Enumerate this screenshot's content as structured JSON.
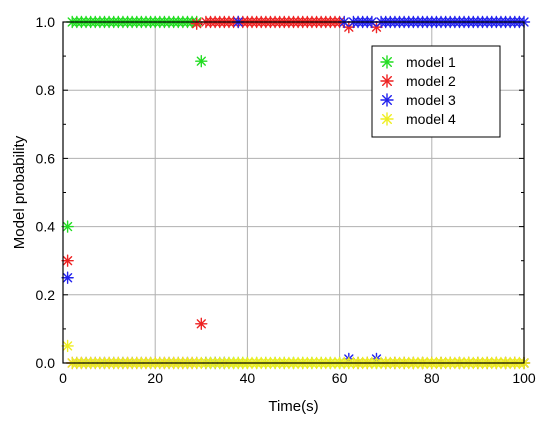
{
  "chart_data": {
    "type": "scatter",
    "title": "",
    "xlabel": "Time(s)",
    "ylabel": "Model probability",
    "xlim": [
      0,
      100
    ],
    "ylim": [
      0,
      1.0
    ],
    "xticks": [
      0,
      20,
      40,
      60,
      80,
      100
    ],
    "yticks": [
      0.0,
      0.2,
      0.4,
      0.6,
      0.8,
      1.0
    ],
    "xtick_labels": [
      "0",
      "20",
      "40",
      "60",
      "80",
      "100"
    ],
    "ytick_labels": [
      "0.0",
      "0.2",
      "0.4",
      "0.6",
      "0.8",
      "1.0"
    ],
    "grid": true,
    "legend_position": "top-right",
    "marker": "asterisk",
    "series": [
      {
        "name": "model 1",
        "color": "#22dd22",
        "points": [
          [
            1,
            0.4
          ],
          [
            2,
            1.0
          ],
          [
            3,
            1.0
          ],
          [
            4,
            1.0
          ],
          [
            5,
            1.0
          ],
          [
            6,
            1.0
          ],
          [
            7,
            1.0
          ],
          [
            8,
            1.0
          ],
          [
            9,
            1.0
          ],
          [
            10,
            1.0
          ],
          [
            11,
            1.0
          ],
          [
            12,
            1.0
          ],
          [
            13,
            1.0
          ],
          [
            14,
            1.0
          ],
          [
            15,
            1.0
          ],
          [
            16,
            1.0
          ],
          [
            17,
            1.0
          ],
          [
            18,
            1.0
          ],
          [
            19,
            1.0
          ],
          [
            20,
            1.0
          ],
          [
            21,
            1.0
          ],
          [
            22,
            1.0
          ],
          [
            23,
            1.0
          ],
          [
            24,
            1.0
          ],
          [
            25,
            1.0
          ],
          [
            26,
            1.0
          ],
          [
            27,
            1.0
          ],
          [
            28,
            1.0
          ],
          [
            29,
            1.0
          ],
          [
            30,
            0.885
          ],
          [
            31,
            0.0
          ],
          [
            32,
            0.0
          ],
          [
            33,
            0.0
          ],
          [
            34,
            0.0
          ],
          [
            35,
            0.0
          ],
          [
            36,
            0.0
          ],
          [
            37,
            0.0
          ],
          [
            38,
            0.0
          ],
          [
            39,
            0.0
          ],
          [
            40,
            0.0
          ],
          [
            42,
            0.0
          ],
          [
            44,
            0.0
          ],
          [
            46,
            0.0
          ],
          [
            48,
            0.0
          ],
          [
            50,
            0.0
          ],
          [
            52,
            0.0
          ],
          [
            54,
            0.0
          ],
          [
            56,
            0.0
          ],
          [
            58,
            0.0
          ],
          [
            60,
            0.0
          ],
          [
            62,
            0.0
          ],
          [
            64,
            0.0
          ],
          [
            66,
            0.0
          ],
          [
            68,
            0.0
          ],
          [
            70,
            0.0
          ],
          [
            72,
            0.0
          ],
          [
            74,
            0.0
          ],
          [
            76,
            0.0
          ],
          [
            78,
            0.0
          ],
          [
            80,
            0.0
          ],
          [
            82,
            0.0
          ],
          [
            84,
            0.0
          ],
          [
            86,
            0.0
          ],
          [
            88,
            0.0
          ],
          [
            90,
            0.0
          ],
          [
            92,
            0.0
          ],
          [
            94,
            0.0
          ],
          [
            96,
            0.0
          ],
          [
            98,
            0.0
          ],
          [
            100,
            0.0
          ]
        ]
      },
      {
        "name": "model 2",
        "color": "#ee2222",
        "points": [
          [
            1,
            0.3
          ],
          [
            2,
            0.0
          ],
          [
            4,
            0.0
          ],
          [
            6,
            0.0
          ],
          [
            8,
            0.0
          ],
          [
            10,
            0.0
          ],
          [
            12,
            0.0
          ],
          [
            14,
            0.0
          ],
          [
            16,
            0.0
          ],
          [
            18,
            0.0
          ],
          [
            20,
            0.0
          ],
          [
            22,
            0.0
          ],
          [
            24,
            0.0
          ],
          [
            26,
            0.0
          ],
          [
            28,
            0.0
          ],
          [
            29,
            0.995
          ],
          [
            30,
            0.115
          ],
          [
            31,
            1.0
          ],
          [
            32,
            1.0
          ],
          [
            33,
            1.0
          ],
          [
            34,
            1.0
          ],
          [
            35,
            1.0
          ],
          [
            36,
            1.0
          ],
          [
            37,
            1.0
          ],
          [
            38,
            1.0
          ],
          [
            39,
            1.0
          ],
          [
            40,
            1.0
          ],
          [
            41,
            1.0
          ],
          [
            42,
            1.0
          ],
          [
            43,
            1.0
          ],
          [
            44,
            1.0
          ],
          [
            45,
            1.0
          ],
          [
            46,
            1.0
          ],
          [
            47,
            1.0
          ],
          [
            48,
            1.0
          ],
          [
            49,
            1.0
          ],
          [
            50,
            1.0
          ],
          [
            51,
            1.0
          ],
          [
            52,
            1.0
          ],
          [
            53,
            1.0
          ],
          [
            54,
            1.0
          ],
          [
            55,
            1.0
          ],
          [
            56,
            1.0
          ],
          [
            57,
            1.0
          ],
          [
            58,
            1.0
          ],
          [
            59,
            1.0
          ],
          [
            60,
            1.0
          ],
          [
            62,
            0.985
          ],
          [
            68,
            0.985
          ],
          [
            64,
            0.0
          ],
          [
            66,
            0.0
          ],
          [
            70,
            0.0
          ],
          [
            72,
            0.0
          ],
          [
            74,
            0.0
          ],
          [
            76,
            0.0
          ],
          [
            78,
            0.0
          ],
          [
            80,
            0.0
          ],
          [
            82,
            0.0
          ],
          [
            84,
            0.0
          ],
          [
            86,
            0.0
          ],
          [
            88,
            0.0
          ],
          [
            90,
            0.0
          ],
          [
            92,
            0.0
          ],
          [
            94,
            0.0
          ],
          [
            96,
            0.0
          ],
          [
            98,
            0.0
          ],
          [
            100,
            0.0
          ]
        ]
      },
      {
        "name": "model 3",
        "color": "#2222ee",
        "points": [
          [
            1,
            0.25
          ],
          [
            3,
            0.0
          ],
          [
            5,
            0.0
          ],
          [
            7,
            0.0
          ],
          [
            9,
            0.0
          ],
          [
            11,
            0.0
          ],
          [
            13,
            0.0
          ],
          [
            15,
            0.0
          ],
          [
            17,
            0.0
          ],
          [
            19,
            0.0
          ],
          [
            21,
            0.0
          ],
          [
            23,
            0.0
          ],
          [
            25,
            0.0
          ],
          [
            27,
            0.0
          ],
          [
            29,
            0.0
          ],
          [
            31,
            0.0
          ],
          [
            33,
            0.0
          ],
          [
            35,
            0.0
          ],
          [
            38,
            1.0
          ],
          [
            61,
            1.0
          ],
          [
            62,
            0.012
          ],
          [
            63,
            1.0
          ],
          [
            64,
            1.0
          ],
          [
            65,
            1.0
          ],
          [
            66,
            1.0
          ],
          [
            67,
            1.0
          ],
          [
            68,
            0.012
          ],
          [
            69,
            1.0
          ],
          [
            70,
            1.0
          ],
          [
            71,
            1.0
          ],
          [
            72,
            1.0
          ],
          [
            73,
            1.0
          ],
          [
            74,
            1.0
          ],
          [
            75,
            1.0
          ],
          [
            76,
            1.0
          ],
          [
            77,
            1.0
          ],
          [
            78,
            1.0
          ],
          [
            79,
            1.0
          ],
          [
            80,
            1.0
          ],
          [
            81,
            1.0
          ],
          [
            82,
            1.0
          ],
          [
            83,
            1.0
          ],
          [
            84,
            1.0
          ],
          [
            85,
            1.0
          ],
          [
            86,
            1.0
          ],
          [
            87,
            1.0
          ],
          [
            88,
            1.0
          ],
          [
            89,
            1.0
          ],
          [
            90,
            1.0
          ],
          [
            91,
            1.0
          ],
          [
            92,
            1.0
          ],
          [
            93,
            1.0
          ],
          [
            94,
            1.0
          ],
          [
            95,
            1.0
          ],
          [
            96,
            1.0
          ],
          [
            97,
            1.0
          ],
          [
            98,
            1.0
          ],
          [
            99,
            1.0
          ],
          [
            100,
            1.0
          ]
        ]
      },
      {
        "name": "model 4",
        "color": "#eeee22",
        "points": [
          [
            1,
            0.05
          ],
          [
            2,
            0.0
          ],
          [
            3,
            0.0
          ],
          [
            4,
            0.0
          ],
          [
            5,
            0.0
          ],
          [
            6,
            0.0
          ],
          [
            7,
            0.0
          ],
          [
            8,
            0.0
          ],
          [
            9,
            0.0
          ],
          [
            10,
            0.0
          ],
          [
            11,
            0.0
          ],
          [
            12,
            0.0
          ],
          [
            13,
            0.0
          ],
          [
            14,
            0.0
          ],
          [
            15,
            0.0
          ],
          [
            16,
            0.0
          ],
          [
            17,
            0.0
          ],
          [
            18,
            0.0
          ],
          [
            19,
            0.0
          ],
          [
            20,
            0.0
          ],
          [
            21,
            0.0
          ],
          [
            22,
            0.0
          ],
          [
            23,
            0.0
          ],
          [
            24,
            0.0
          ],
          [
            25,
            0.0
          ],
          [
            26,
            0.0
          ],
          [
            27,
            0.0
          ],
          [
            28,
            0.0
          ],
          [
            29,
            0.0
          ],
          [
            30,
            0.0
          ],
          [
            31,
            0.0
          ],
          [
            32,
            0.0
          ],
          [
            33,
            0.0
          ],
          [
            34,
            0.0
          ],
          [
            35,
            0.0
          ],
          [
            36,
            0.0
          ],
          [
            37,
            0.0
          ],
          [
            38,
            0.0
          ],
          [
            39,
            0.0
          ],
          [
            40,
            0.0
          ],
          [
            41,
            0.0
          ],
          [
            42,
            0.0
          ],
          [
            43,
            0.0
          ],
          [
            44,
            0.0
          ],
          [
            45,
            0.0
          ],
          [
            46,
            0.0
          ],
          [
            47,
            0.0
          ],
          [
            48,
            0.0
          ],
          [
            49,
            0.0
          ],
          [
            50,
            0.0
          ],
          [
            51,
            0.0
          ],
          [
            52,
            0.0
          ],
          [
            53,
            0.0
          ],
          [
            54,
            0.0
          ],
          [
            55,
            0.0
          ],
          [
            56,
            0.0
          ],
          [
            57,
            0.0
          ],
          [
            58,
            0.0
          ],
          [
            59,
            0.0
          ],
          [
            60,
            0.0
          ],
          [
            61,
            0.0
          ],
          [
            62,
            0.0
          ],
          [
            63,
            0.0
          ],
          [
            64,
            0.0
          ],
          [
            65,
            0.0
          ],
          [
            66,
            0.0
          ],
          [
            67,
            0.0
          ],
          [
            68,
            0.0
          ],
          [
            69,
            0.0
          ],
          [
            70,
            0.0
          ],
          [
            71,
            0.0
          ],
          [
            72,
            0.0
          ],
          [
            73,
            0.0
          ],
          [
            74,
            0.0
          ],
          [
            75,
            0.0
          ],
          [
            76,
            0.0
          ],
          [
            77,
            0.0
          ],
          [
            78,
            0.0
          ],
          [
            79,
            0.0
          ],
          [
            80,
            0.0
          ],
          [
            81,
            0.0
          ],
          [
            82,
            0.0
          ],
          [
            83,
            0.0
          ],
          [
            84,
            0.0
          ],
          [
            85,
            0.0
          ],
          [
            86,
            0.0
          ],
          [
            87,
            0.0
          ],
          [
            88,
            0.0
          ],
          [
            89,
            0.0
          ],
          [
            90,
            0.0
          ],
          [
            91,
            0.0
          ],
          [
            92,
            0.0
          ],
          [
            93,
            0.0
          ],
          [
            94,
            0.0
          ],
          [
            95,
            0.0
          ],
          [
            96,
            0.0
          ],
          [
            97,
            0.0
          ],
          [
            98,
            0.0
          ],
          [
            99,
            0.0
          ],
          [
            100,
            0.0
          ]
        ]
      }
    ]
  }
}
